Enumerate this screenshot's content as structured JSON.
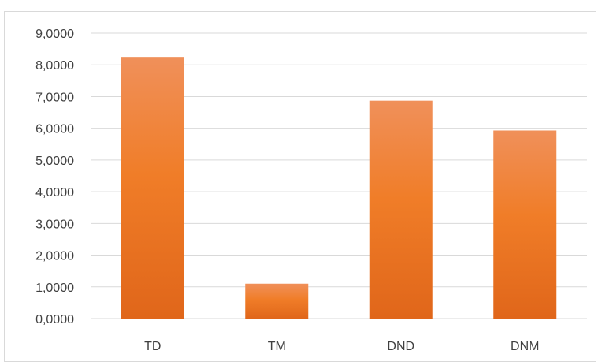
{
  "chart_data": {
    "type": "bar",
    "categories": [
      "TD",
      "TM",
      "DND",
      "DNM"
    ],
    "values": [
      8.25,
      1.1,
      6.87,
      5.93
    ],
    "yticks": [
      "0,0000",
      "1,0000",
      "2,0000",
      "3,0000",
      "4,0000",
      "5,0000",
      "6,0000",
      "7,0000",
      "8,0000",
      "9,0000"
    ],
    "ylim": [
      0,
      9
    ],
    "grid": true,
    "legend": "none",
    "title": "",
    "xlabel": "",
    "ylabel": "",
    "bar_color_top": "#f0905a",
    "bar_color_mid": "#f07d28",
    "bar_color_bottom": "#e0661a"
  }
}
